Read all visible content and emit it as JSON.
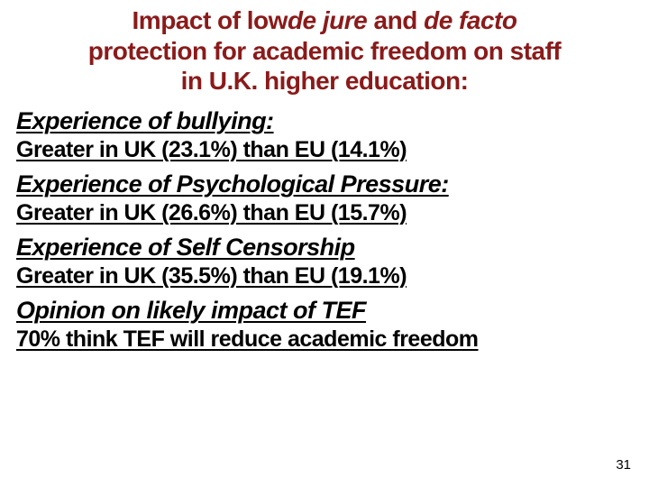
{
  "page_number": "31",
  "colors": {
    "title": "#8b1a1a",
    "body": "#000000",
    "background": "#ffffff"
  },
  "typography": {
    "family": "Trebuchet MS",
    "title_size_pt": 28,
    "subhead_size_pt": 27,
    "stat_size_pt": 25,
    "title_weight": "bold",
    "body_weight": "bold",
    "underline": true
  },
  "title": {
    "seg1": "Impact of low",
    "seg2": "de jure",
    "seg3": " and ",
    "seg4": "de facto",
    "line2": "protection for academic freedom on staff",
    "line3": "in U.K. higher education:"
  },
  "sections": [
    {
      "heading": "Experience of bullying:",
      "stat": "Greater in UK (23.1%) than EU (14.1%)"
    },
    {
      "heading": "Experience of Psychological Pressure:",
      "stat": "Greater in UK (26.6%) than EU (15.7%)"
    },
    {
      "heading": "Experience of Self Censorship",
      "stat": "Greater in UK (35.5%) than EU (19.1%)"
    },
    {
      "heading": "Opinion on likely impact of TEF",
      "stat": "70% think TEF will reduce academic freedom"
    }
  ]
}
